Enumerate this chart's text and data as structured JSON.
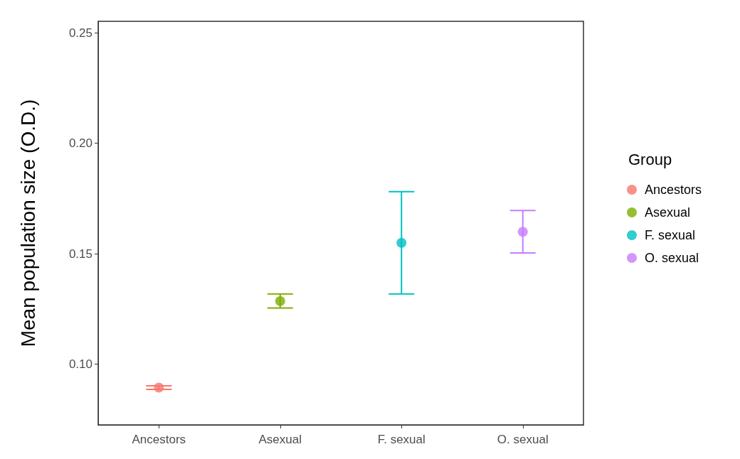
{
  "chart_data": {
    "type": "scatter",
    "ylabel": "Mean population size (O.D.)",
    "legend_title": "Group",
    "categories": [
      "Ancestors",
      "Asexual",
      "F. sexual",
      "O. sexual"
    ],
    "series": [
      {
        "name": "Ancestors",
        "color": "#f8766d",
        "x": [
          "Ancestors"
        ],
        "values": [
          0.0893
        ],
        "errors": [
          [
            0.0885,
            0.0901
          ]
        ]
      },
      {
        "name": "Asexual",
        "color": "#7cae00",
        "x": [
          "Asexual"
        ],
        "values": [
          0.1285
        ],
        "errors": [
          [
            0.1254,
            0.1317
          ]
        ]
      },
      {
        "name": "F. sexual",
        "color": "#00bfc4",
        "x": [
          "F. sexual"
        ],
        "values": [
          0.1549
        ],
        "errors": [
          [
            0.1317,
            0.1781
          ]
        ]
      },
      {
        "name": "O. sexual",
        "color": "#c77cff",
        "x": [
          "O. sexual"
        ],
        "values": [
          0.1599
        ],
        "errors": [
          [
            0.1503,
            0.1696
          ]
        ]
      }
    ],
    "ylim": [
      0.0724,
      0.2553
    ],
    "yticks": [
      {
        "value": 0.1,
        "label": "0.10"
      },
      {
        "value": 0.15,
        "label": "0.15"
      },
      {
        "value": 0.2,
        "label": "0.20"
      },
      {
        "value": 0.25,
        "label": "0.25"
      }
    ],
    "grid": false,
    "legend": "right",
    "marker": "circle"
  }
}
